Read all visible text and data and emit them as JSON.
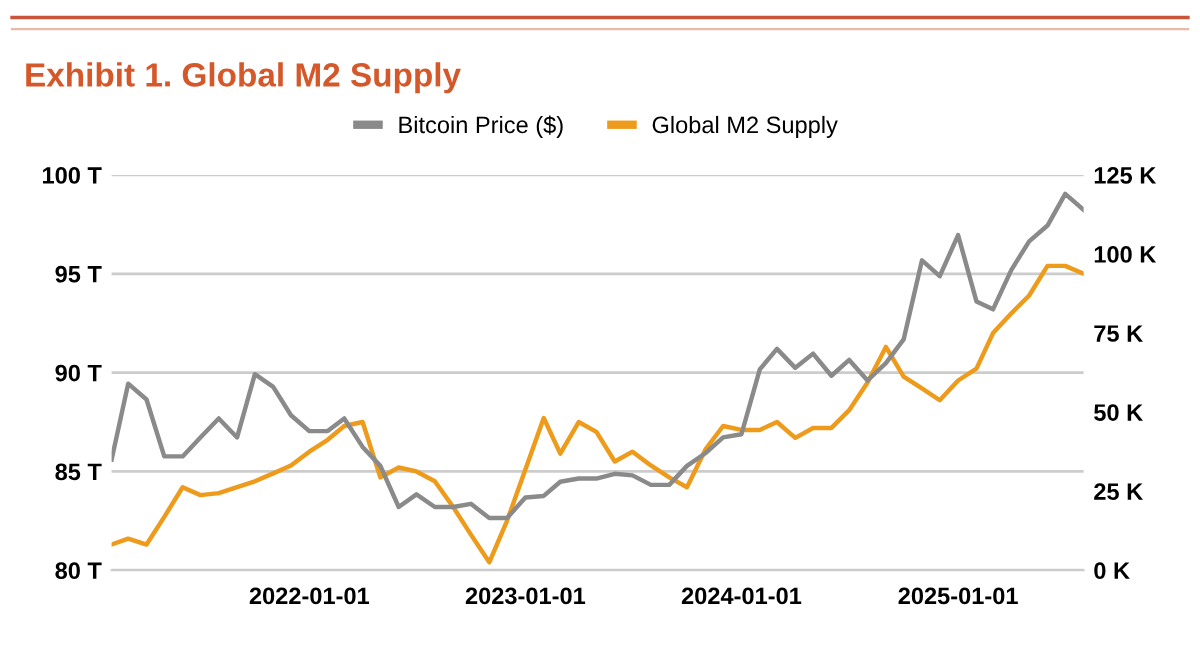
{
  "chart_data": {
    "type": "line",
    "title": "Exhibit 1. Global M2 Supply",
    "x": [
      "2021-02",
      "2021-03",
      "2021-04",
      "2021-05",
      "2021-06",
      "2021-07",
      "2021-08",
      "2021-09",
      "2021-10",
      "2021-11",
      "2021-12",
      "2022-01",
      "2022-02",
      "2022-03",
      "2022-04",
      "2022-05",
      "2022-06",
      "2022-07",
      "2022-08",
      "2022-09",
      "2022-10",
      "2022-11",
      "2022-12",
      "2023-01",
      "2023-02",
      "2023-03",
      "2023-04",
      "2023-05",
      "2023-06",
      "2023-07",
      "2023-08",
      "2023-09",
      "2023-10",
      "2023-11",
      "2023-12",
      "2024-01",
      "2024-02",
      "2024-03",
      "2024-04",
      "2024-05",
      "2024-06",
      "2024-07",
      "2024-08",
      "2024-09",
      "2024-10",
      "2024-11",
      "2024-12",
      "2025-01",
      "2025-02",
      "2025-03",
      "2025-04",
      "2025-05",
      "2025-06",
      "2025-07",
      "2025-08"
    ],
    "series": [
      {
        "name": "Bitcoin Price ($)",
        "color": "#8a8a8a",
        "axis": "y2",
        "values": [
          35,
          59,
          54,
          36,
          36,
          42,
          48,
          42,
          62,
          58,
          49,
          44,
          44,
          48,
          39,
          33,
          20,
          24,
          20,
          20,
          21,
          16.5,
          16.5,
          23,
          23.5,
          28,
          29,
          29,
          30.5,
          30,
          27,
          27,
          33,
          37,
          42,
          43,
          63.5,
          70,
          64,
          68.5,
          61.5,
          66.5,
          60,
          65.5,
          73,
          98,
          93,
          106,
          85,
          82.5,
          95,
          104,
          109,
          119,
          114
        ]
      },
      {
        "name": "Global M2 Supply",
        "color": "#ee9b1b",
        "values": [
          81.3,
          81.6,
          81.3,
          82.7,
          84.2,
          83.8,
          83.9,
          84.2,
          84.5,
          84.9,
          85.3,
          86.0,
          86.6,
          87.3,
          87.5,
          84.7,
          85.2,
          85.0,
          84.5,
          83.2,
          81.8,
          80.4,
          82.5,
          85.1,
          87.7,
          85.9,
          87.5,
          87.0,
          85.5,
          86.0,
          85.3,
          84.7,
          84.2,
          86.1,
          87.3,
          87.1,
          87.1,
          87.5,
          86.7,
          87.2,
          87.2,
          88.1,
          89.5,
          91.3,
          89.8,
          89.2,
          88.6,
          89.6,
          90.2,
          92.0,
          93.0,
          93.9,
          95.4,
          95.4,
          95.0
        ]
      }
    ],
    "xlim": [
      "2021-02",
      "2025-08"
    ],
    "xticks": [
      {
        "value": "2022-01-01",
        "label": "2022-01-01"
      },
      {
        "value": "2023-01-01",
        "label": "2023-01-01"
      },
      {
        "value": "2024-01-01",
        "label": "2024-01-01"
      },
      {
        "value": "2025-01-01",
        "label": "2025-01-01"
      }
    ],
    "ylim": [
      80,
      100
    ],
    "yticks": [
      {
        "value": 80,
        "label": "80 T"
      },
      {
        "value": 85,
        "label": "85 T"
      },
      {
        "value": 90,
        "label": "90 T"
      },
      {
        "value": 95,
        "label": "95 T"
      },
      {
        "value": 100,
        "label": "100 T"
      }
    ],
    "y2lim": [
      0,
      125
    ],
    "y2ticks": [
      {
        "value": 0,
        "label": "0 K"
      },
      {
        "value": 25,
        "label": "25 K"
      },
      {
        "value": 50,
        "label": "50 K"
      },
      {
        "value": 75,
        "label": "75 K"
      },
      {
        "value": 100,
        "label": "100 K"
      },
      {
        "value": 125,
        "label": "125 K"
      }
    ],
    "grid": "y",
    "legend": "top",
    "marker": "none",
    "line_style": "solid"
  }
}
